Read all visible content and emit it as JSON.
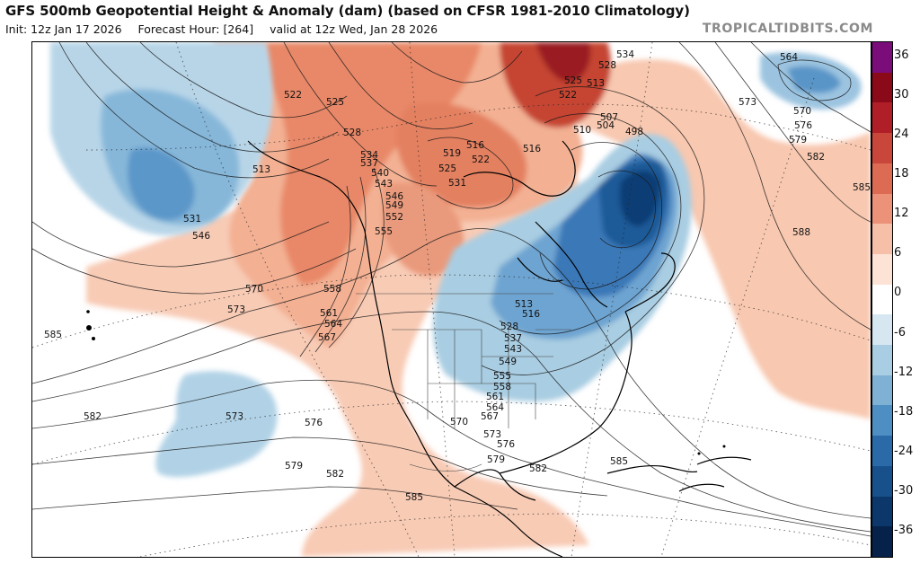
{
  "header": {
    "title": "GFS 500mb Geopotential Height & Anomaly (dam) (based on CFSR 1981-2010 Climatology)",
    "init": "Init: 12z Jan 17 2026",
    "forecast_hour": "Forecast Hour: [264]",
    "valid": "valid at 12z Wed, Jan 28 2026",
    "brand": "TROPICALTIDBITS.COM"
  },
  "colorbar": {
    "ticks": [
      "36",
      "30",
      "24",
      "18",
      "12",
      "6",
      "0",
      "-6",
      "-12",
      "-18",
      "-24",
      "-30",
      "-36"
    ],
    "colors": [
      "#7a0d7a",
      "#8a0a1a",
      "#b01e27",
      "#c9463b",
      "#dd6a52",
      "#eb9278",
      "#f6c0a8",
      "#fde3d6",
      "#ffffff",
      "#d6e7f1",
      "#a9cde2",
      "#7fb1d5",
      "#4e8fc3",
      "#2a6aa9",
      "#17508b",
      "#0b376a",
      "#06214a"
    ]
  },
  "map": {
    "contour_labels": [
      "522",
      "525",
      "528",
      "534",
      "537",
      "540",
      "543",
      "546",
      "549",
      "552",
      "555",
      "558",
      "561",
      "564",
      "567",
      "570",
      "573",
      "576",
      "579",
      "582",
      "585",
      "588",
      "513",
      "519",
      "516",
      "531",
      "498",
      "504",
      "507",
      "510",
      "564",
      "570",
      "576",
      "579",
      "582",
      "585"
    ],
    "labels_west": [
      "522",
      "525",
      "513",
      "531",
      "546",
      "570",
      "573",
      "585",
      "582",
      "573",
      "576",
      "579",
      "582"
    ],
    "labels_north": [
      "528",
      "534",
      "537",
      "540",
      "543",
      "546",
      "549",
      "552",
      "555",
      "558",
      "561",
      "564",
      "567",
      "519",
      "516",
      "522",
      "531",
      "525",
      "510",
      "507",
      "504",
      "498",
      "528",
      "534",
      "513",
      "525",
      "522",
      "516"
    ],
    "labels_east": [
      "564",
      "570",
      "576",
      "579",
      "582",
      "585",
      "588",
      "573"
    ],
    "labels_south": [
      "513",
      "516",
      "528",
      "537",
      "543",
      "549",
      "555",
      "558",
      "561",
      "564",
      "567",
      "570",
      "573",
      "576",
      "579",
      "582",
      "585"
    ]
  }
}
